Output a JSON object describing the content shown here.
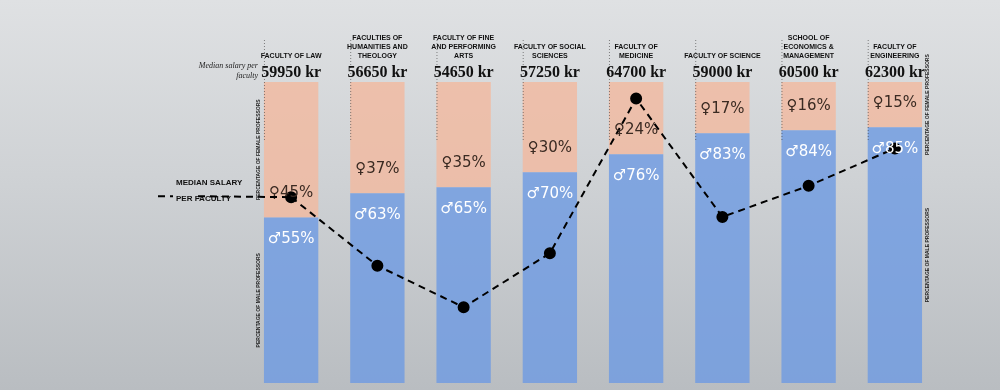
{
  "chart_data": {
    "type": "bar",
    "stacked": true,
    "data_labels": true,
    "tick_labels": false,
    "grid": false,
    "categories": [
      "FACULTY OF LAW",
      "FACULTIES OF HUMANITIES AND THEOLOGY",
      "FACULTY OF FINE AND PERFORMING ARTS",
      "FACULTY OF SOCIAL SCIENCES",
      "FACULTY OF MEDICINE",
      "FACULTY OF SCIENCE",
      "SCHOOL OF ECONOMICS & MANAGEMENT",
      "FACULTY OF ENGINEERING"
    ],
    "series": [
      {
        "name": "PERCENTAGE OF MALE PROFESSORS",
        "color": "#6f9be2",
        "values": [
          55,
          63,
          65,
          70,
          76,
          83,
          84,
          85
        ],
        "value_labels": [
          "♂55%",
          "♂63%",
          "♂65%",
          "♂70%",
          "♂76%",
          "♂83%",
          "♂84%",
          "♂85%"
        ]
      },
      {
        "name": "PERCENTAGE OF FEMALE PROFESSORS",
        "color": "#f2b9a0",
        "values": [
          45,
          37,
          35,
          30,
          24,
          17,
          16,
          15
        ],
        "value_labels": [
          "♀45%",
          "♀37%",
          "♀35%",
          "♀30%",
          "♀24%",
          "♀17%",
          "♀16%",
          "♀15%"
        ]
      },
      {
        "name": "MEDIAN SALARY PER FACULTY",
        "type": "line",
        "axis": "y2",
        "color": "#000000",
        "line_style": "dashed",
        "marker": "circle",
        "values": [
          59950,
          56650,
          54650,
          57250,
          64700,
          59000,
          60500,
          62300
        ],
        "value_labels": [
          "59950 kr",
          "56650 kr",
          "54650 kr",
          "57250 kr",
          "64700 kr",
          "59000 kr",
          "60500 kr",
          "62300 kr"
        ]
      }
    ],
    "ylim": [
      0,
      100
    ],
    "y2lim": [
      51000,
      65500
    ],
    "annotations": [
      "Median salary per faculty"
    ]
  }
}
